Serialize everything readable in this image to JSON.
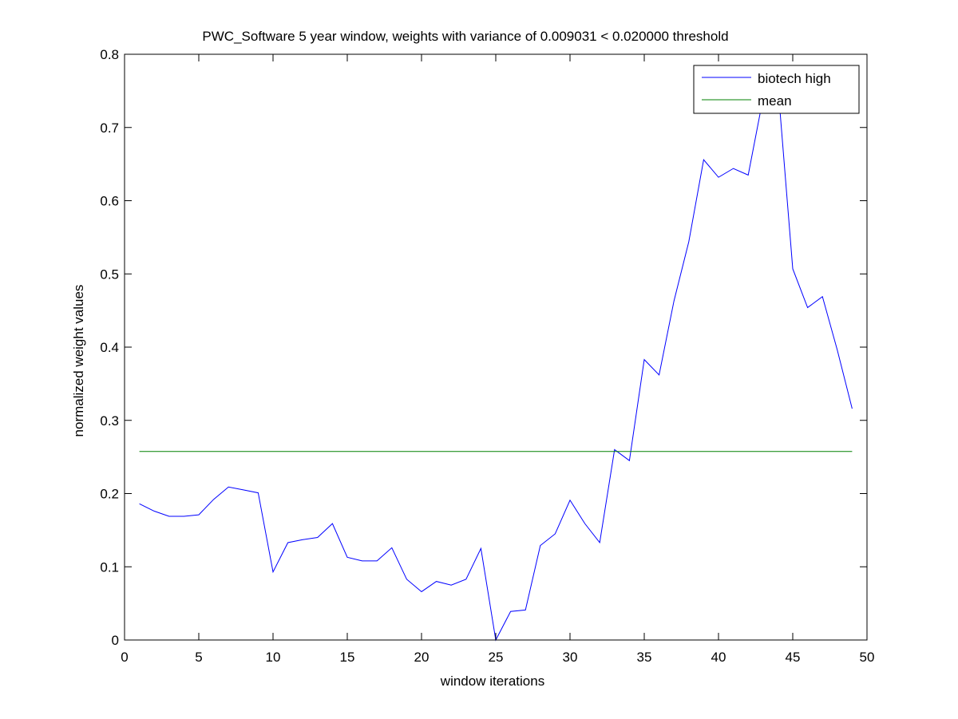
{
  "chart_data": {
    "type": "line",
    "title": "PWC_Software 5 year window, weights with variance of 0.009031 < 0.020000 threshold",
    "xlabel": "window iterations",
    "ylabel": "normalized weight values",
    "xlim": [
      0,
      50
    ],
    "ylim": [
      0,
      0.8
    ],
    "xticks": [
      0,
      5,
      10,
      15,
      20,
      25,
      30,
      35,
      40,
      45,
      50
    ],
    "yticks": [
      0,
      0.1,
      0.2,
      0.3,
      0.4,
      0.5,
      0.6,
      0.7,
      0.8
    ],
    "xtick_labels": [
      "0",
      "5",
      "10",
      "15",
      "20",
      "25",
      "30",
      "35",
      "40",
      "45",
      "50"
    ],
    "ytick_labels": [
      "0",
      "0.1",
      "0.2",
      "0.3",
      "0.4",
      "0.5",
      "0.6",
      "0.7",
      "0.8"
    ],
    "grid": false,
    "legend_position": "top-right",
    "series": [
      {
        "name": "biotech high",
        "color": "#0000ff",
        "x": [
          1,
          2,
          3,
          4,
          5,
          6,
          7,
          8,
          9,
          10,
          11,
          12,
          13,
          14,
          15,
          16,
          17,
          18,
          19,
          20,
          21,
          22,
          23,
          24,
          25,
          26,
          27,
          28,
          29,
          30,
          31,
          32,
          33,
          34,
          35,
          36,
          37,
          38,
          39,
          40,
          41,
          42,
          43,
          44,
          45,
          46,
          47,
          48,
          49
        ],
        "values": [
          0.186,
          0.176,
          0.169,
          0.169,
          0.171,
          0.192,
          0.209,
          0.205,
          0.201,
          0.093,
          0.133,
          0.137,
          0.14,
          0.159,
          0.113,
          0.108,
          0.108,
          0.126,
          0.083,
          0.066,
          0.08,
          0.075,
          0.083,
          0.125,
          0.0,
          0.039,
          0.041,
          0.129,
          0.145,
          0.191,
          0.159,
          0.133,
          0.26,
          0.245,
          0.383,
          0.362,
          0.463,
          0.544,
          0.656,
          0.632,
          0.644,
          0.635,
          0.74,
          0.758,
          0.507,
          0.454,
          0.469,
          0.396,
          0.316
        ]
      },
      {
        "name": "mean",
        "color": "#008000",
        "x": [
          1,
          49
        ],
        "values": [
          0.2575,
          0.2575
        ]
      }
    ]
  }
}
